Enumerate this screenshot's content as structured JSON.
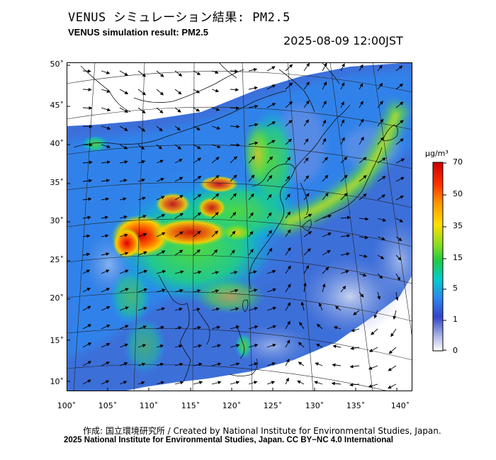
{
  "header": {
    "title_jp": "VENUS シミュレーション結果: PM2.5",
    "title_en": "VENUS simulation result: PM2.5",
    "timestamp": "2025-08-09 12:00JST"
  },
  "map": {
    "lat_labels": [
      "50˚",
      "45˚",
      "40˚",
      "35˚",
      "30˚",
      "25˚",
      "20˚",
      "15˚",
      "10˚"
    ],
    "lon_labels": [
      "100˚",
      "105˚",
      "110˚",
      "115˚",
      "120˚",
      "125˚",
      "130˚",
      "135˚",
      "140˚"
    ],
    "extent": {
      "lon": [
        100,
        141
      ],
      "lat": [
        9,
        51
      ]
    }
  },
  "colorbar": {
    "unit": "μg/m³",
    "labels": [
      "70",
      "50",
      "35",
      "15",
      "5",
      "1",
      "0"
    ],
    "colors": [
      "#cc0000",
      "#ff6600",
      "#ffcc00",
      "#33cc33",
      "#00cccc",
      "#3399ff",
      "#3344cc",
      "#ffffff"
    ]
  },
  "footer": {
    "credit_line1": "作成: 国立環境研究所 / Created by National Institute for Environmental Studies, Japan.",
    "credit_line2": "2025 National Institute for Environmental Studies, Japan. CC BY−NC 4.0 International"
  }
}
